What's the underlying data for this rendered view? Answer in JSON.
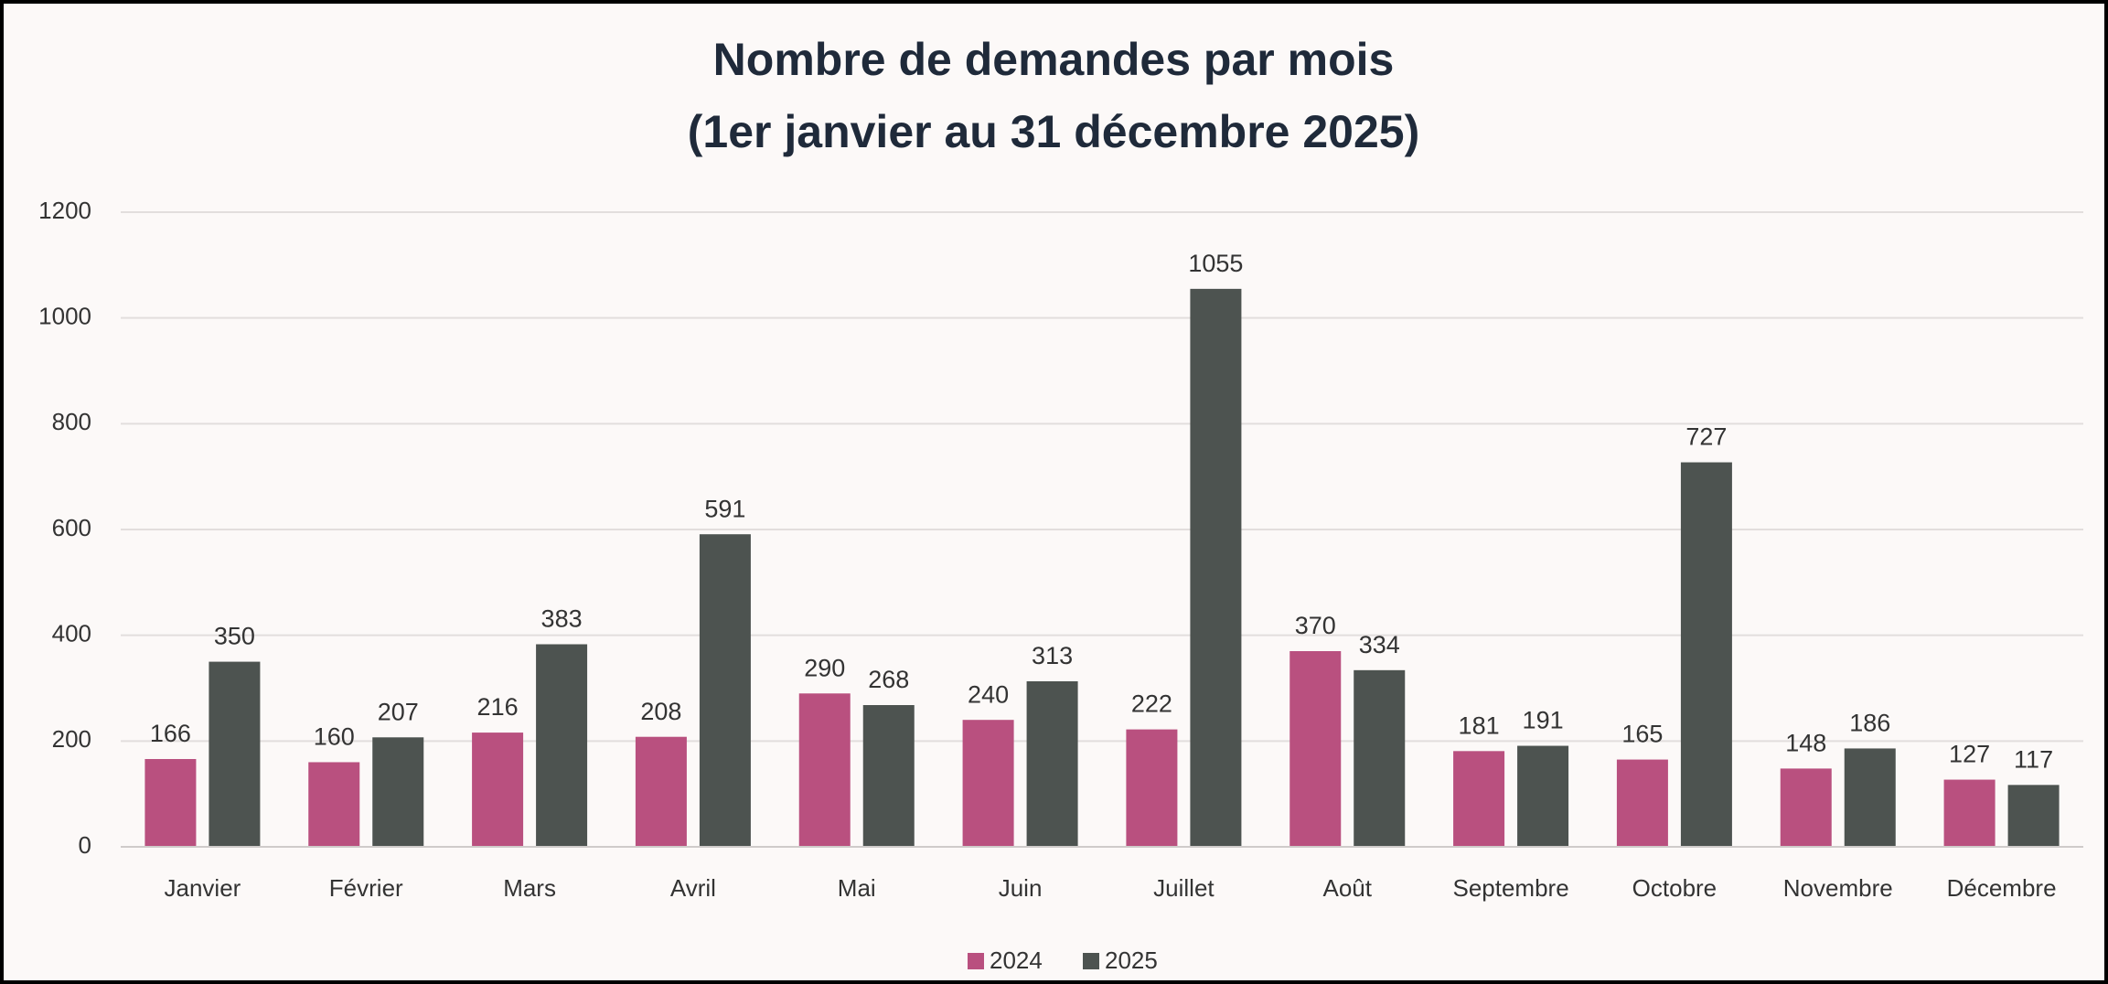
{
  "chart_data": {
    "type": "bar",
    "title": "Nombre de demandes par mois",
    "subtitle": "(1er janvier au 31 décembre 2025)",
    "categories": [
      "Janvier",
      "Février",
      "Mars",
      "Avril",
      "Mai",
      "Juin",
      "Juillet",
      "Août",
      "Septembre",
      "Octobre",
      "Novembre",
      "Décembre"
    ],
    "series": [
      {
        "name": "2024",
        "color": "#b9507f",
        "values": [
          166,
          160,
          216,
          208,
          290,
          240,
          222,
          370,
          181,
          165,
          148,
          127
        ]
      },
      {
        "name": "2025",
        "color": "#4d5350",
        "values": [
          350,
          207,
          383,
          591,
          268,
          313,
          1055,
          334,
          191,
          727,
          186,
          117
        ]
      }
    ],
    "ylim": [
      0,
      1200
    ],
    "yticks": [
      0,
      200,
      400,
      600,
      800,
      1000,
      1200
    ],
    "grid": true,
    "legend": "bottom"
  }
}
